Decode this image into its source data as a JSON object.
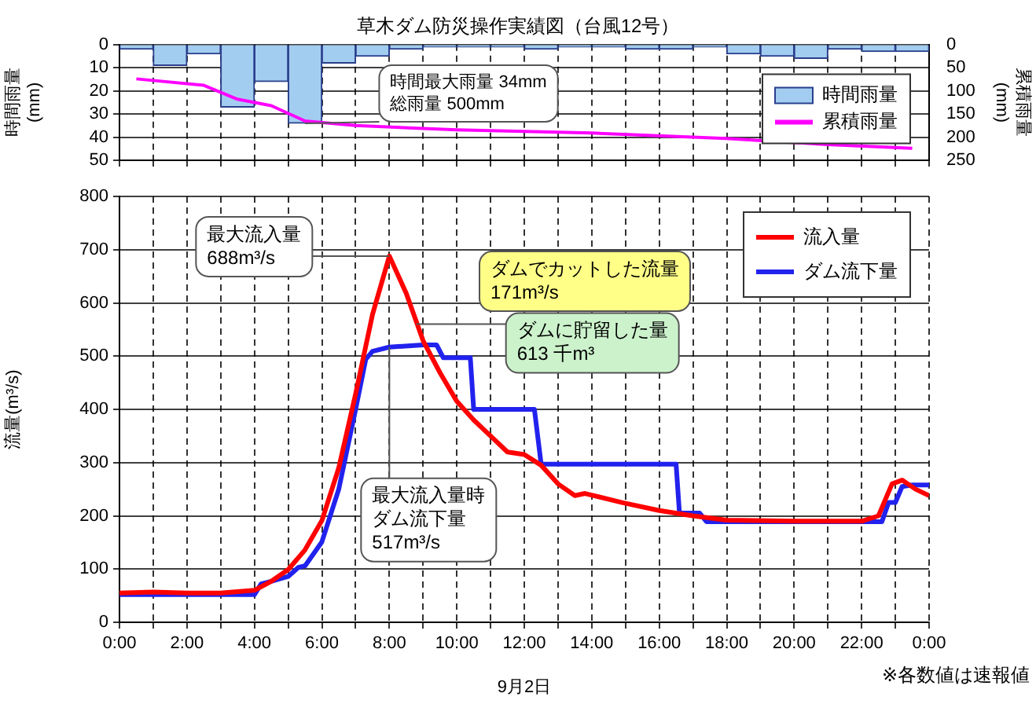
{
  "chart_data": [
    {
      "type": "bar",
      "title": "草木ダム防災操作実績図（台風12号）",
      "ylabel": "時間雨量\n(mm)",
      "y2label": "累積雨量\n(mm)",
      "x": [
        0.5,
        1.5,
        2.5,
        3.5,
        4.5,
        5.5,
        6.5,
        7.5,
        8.5,
        9.5,
        10.5,
        11.5,
        12.5,
        13.5,
        14.5,
        15.5,
        16.5,
        17.5,
        18.5,
        19.5,
        20.5,
        21.5,
        22.5,
        23.5
      ],
      "series": [
        {
          "name": "時間雨量",
          "color": "#a3cdf0",
          "values": [
            2,
            9,
            4,
            27,
            16,
            34,
            8,
            5,
            2,
            1,
            1,
            1,
            2,
            1,
            1,
            2,
            2,
            1,
            4,
            5,
            6,
            2,
            3,
            3
          ]
        },
        {
          "name": "累積雨量",
          "type": "line",
          "axis": "y2",
          "color": "#ff00ff",
          "x": [
            0.5,
            2.5,
            3.5,
            4.5,
            5.5,
            7,
            10,
            14,
            18,
            21,
            23.5
          ],
          "values": [
            74,
            88,
            118,
            132,
            165,
            175,
            184,
            191,
            203,
            216,
            224
          ]
        }
      ],
      "xlim": [
        0,
        24
      ],
      "xticks": [
        {
          "value": 0,
          "label": null
        },
        {
          "value": 1,
          "label": null
        },
        {
          "value": 2,
          "label": null
        },
        {
          "value": 3,
          "label": null
        },
        {
          "value": 4,
          "label": null
        },
        {
          "value": 5,
          "label": null
        },
        {
          "value": 6,
          "label": null
        },
        {
          "value": 7,
          "label": null
        },
        {
          "value": 8,
          "label": null
        },
        {
          "value": 9,
          "label": null
        },
        {
          "value": 10,
          "label": null
        },
        {
          "value": 11,
          "label": null
        },
        {
          "value": 12,
          "label": null
        },
        {
          "value": 13,
          "label": null
        },
        {
          "value": 14,
          "label": null
        },
        {
          "value": 15,
          "label": null
        },
        {
          "value": 16,
          "label": null
        },
        {
          "value": 17,
          "label": null
        },
        {
          "value": 18,
          "label": null
        },
        {
          "value": 19,
          "label": null
        },
        {
          "value": 20,
          "label": null
        },
        {
          "value": 21,
          "label": null
        },
        {
          "value": 22,
          "label": null
        },
        {
          "value": 23,
          "label": null
        },
        {
          "value": 24,
          "label": null
        }
      ],
      "ylim": [
        50,
        0
      ],
      "yticks": [
        0,
        10,
        20,
        30,
        40,
        50
      ],
      "y2lim": [
        250,
        0
      ],
      "y2ticks": [
        0,
        50,
        100,
        150,
        200,
        250
      ],
      "tick_labels": "y",
      "grid": true,
      "legend": "right",
      "annotations": [
        {
          "text": "時間最大雨量 34mm\n総雨量 500mm",
          "x": 5.5,
          "y": 34
        }
      ]
    },
    {
      "type": "line",
      "xlabel": "9月2日",
      "ylabel": "流量(m³/s)",
      "series": [
        {
          "name": "流入量",
          "color": "#ff0000",
          "x": [
            0,
            1,
            2,
            3,
            4,
            4.5,
            5,
            5.5,
            6,
            6.5,
            7,
            7.5,
            8,
            8.5,
            9,
            9.5,
            10,
            10.5,
            11,
            11.5,
            12,
            12.5,
            13,
            13.5,
            13.8,
            14.9,
            16,
            17,
            18,
            20,
            22,
            22.5,
            22.9,
            23.2,
            23.6,
            24
          ],
          "values": [
            55,
            57,
            55,
            55,
            60,
            77,
            99,
            136,
            191,
            290,
            429,
            578,
            688,
            618,
            529,
            469,
            415,
            380,
            350,
            320,
            315,
            295,
            260,
            238,
            242,
            225,
            210,
            200,
            192,
            190,
            190,
            200,
            260,
            267,
            250,
            238
          ]
        },
        {
          "name": "ダム流下量",
          "color": "#2222ee",
          "x": [
            0,
            4,
            4.2,
            4.5,
            5,
            5.3,
            5.5,
            6,
            6.5,
            7,
            7.3,
            7.5,
            8,
            9,
            9.4,
            9.6,
            10.4,
            10.5,
            12.3,
            12.5,
            16.5,
            16.6,
            17.2,
            17.4,
            22.6,
            22.8,
            23,
            23.2,
            23.5,
            24
          ],
          "values": [
            52,
            52,
            72,
            77,
            86,
            103,
            106,
            151,
            250,
            400,
            494,
            509,
            517,
            521,
            521,
            497,
            497,
            400,
            400,
            297,
            297,
            205,
            205,
            189,
            189,
            225,
            225,
            255,
            258,
            258
          ]
        }
      ],
      "xlim": [
        0,
        24
      ],
      "xticks": [
        {
          "value": 0,
          "label": "0:00"
        },
        {
          "value": 1,
          "label": null
        },
        {
          "value": 2,
          "label": "2:00"
        },
        {
          "value": 3,
          "label": null
        },
        {
          "value": 4,
          "label": "4:00"
        },
        {
          "value": 5,
          "label": null
        },
        {
          "value": 6,
          "label": "6:00"
        },
        {
          "value": 7,
          "label": null
        },
        {
          "value": 8,
          "label": "8:00"
        },
        {
          "value": 9,
          "label": null
        },
        {
          "value": 10,
          "label": "10:00"
        },
        {
          "value": 11,
          "label": null
        },
        {
          "value": 12,
          "label": "12:00"
        },
        {
          "value": 13,
          "label": null
        },
        {
          "value": 14,
          "label": "14:00"
        },
        {
          "value": 15,
          "label": null
        },
        {
          "value": 16,
          "label": "16:00"
        },
        {
          "value": 17,
          "label": null
        },
        {
          "value": 18,
          "label": "18:00"
        },
        {
          "value": 19,
          "label": null
        },
        {
          "value": 20,
          "label": "20:00"
        },
        {
          "value": 21,
          "label": null
        },
        {
          "value": 22,
          "label": "22:00"
        },
        {
          "value": 23,
          "label": null
        },
        {
          "value": 24,
          "label": "0:00"
        }
      ],
      "ylim": [
        0,
        800
      ],
      "yticks": [
        0,
        100,
        200,
        300,
        400,
        500,
        600,
        700,
        800
      ],
      "grid": true,
      "legend": "top right",
      "annotations": [
        {
          "text": "最大流入量\n688m³/s",
          "x": 8,
          "y": 688
        },
        "ダムでカットした流量\n171m³/s",
        {
          "text": "ダムに貯留した量\n613 千m³",
          "x": 8.8,
          "y": 560
        },
        {
          "text": "最大流入量時ダム流下量\n517m³/s",
          "x": 8,
          "y": 517
        },
        "※各数値は速報値"
      ]
    }
  ]
}
